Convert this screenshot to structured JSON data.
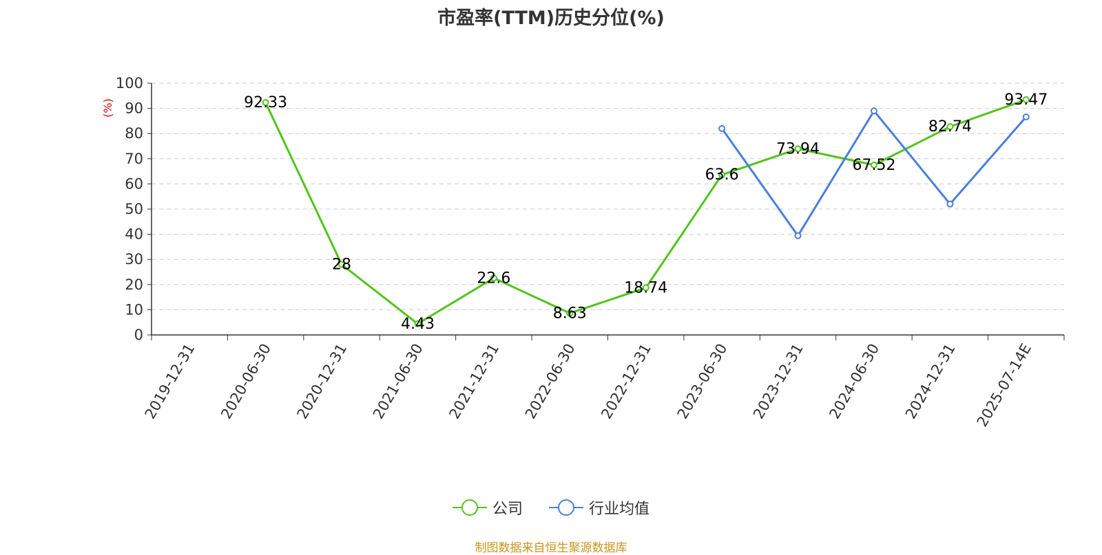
{
  "chart_data": {
    "type": "line",
    "title": "市盈率(TTM)历史分位(%)",
    "ylabel": "(%)",
    "xlabel": "",
    "ylim": [
      0,
      100
    ],
    "yticks": [
      "0",
      "10",
      "20",
      "30",
      "40",
      "50",
      "60",
      "70",
      "80",
      "90",
      "100"
    ],
    "categories": [
      "2019-12-31",
      "2020-06-30",
      "2020-12-31",
      "2021-06-30",
      "2021-12-31",
      "2022-06-30",
      "2022-12-31",
      "2023-06-30",
      "2023-12-31",
      "2024-06-30",
      "2024-12-31",
      "2025-07-14E"
    ],
    "grid": "horizontal-dashed",
    "legend_position": "bottom",
    "series": [
      {
        "name": "公司",
        "color": "#52c41a",
        "values": [
          null,
          92.33,
          28,
          4.43,
          22.6,
          8.63,
          18.74,
          63.6,
          73.94,
          67.52,
          82.74,
          93.47
        ],
        "labels": [
          "",
          "92.33",
          "28",
          "4.43",
          "22.6",
          "8.63",
          "18.74",
          "63.6",
          "73.94",
          "67.52",
          "82.74",
          "93.47"
        ]
      },
      {
        "name": "行业均值",
        "color": "#4a7fdc",
        "values": [
          null,
          null,
          null,
          null,
          null,
          null,
          null,
          82,
          39.4,
          89,
          52,
          86.6
        ]
      }
    ]
  },
  "legend": {
    "company": "公司",
    "industry": "行业均值"
  },
  "source": "制图数据来自恒生聚源数据库"
}
